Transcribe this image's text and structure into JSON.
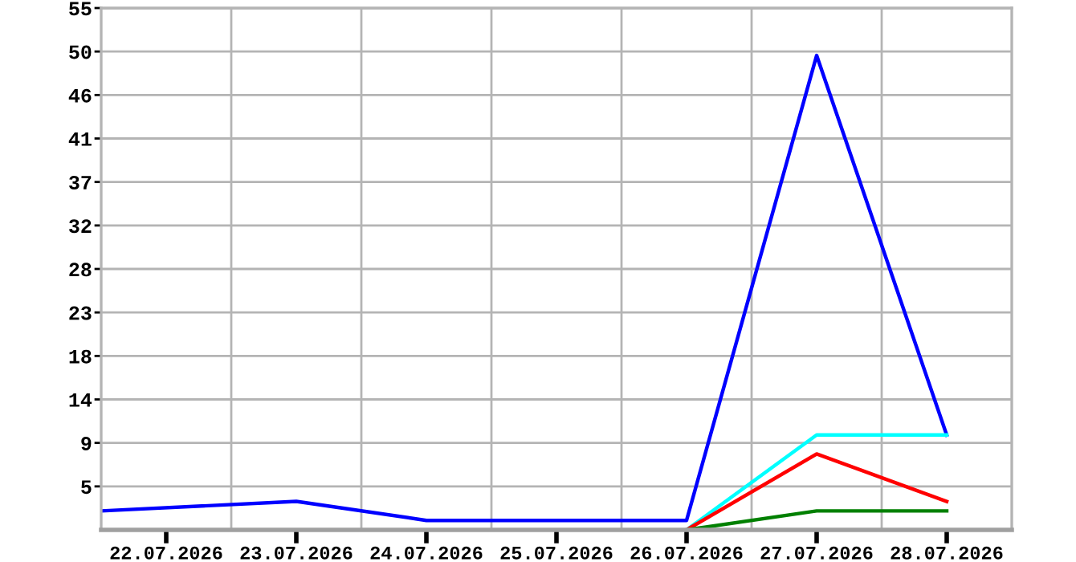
{
  "chart_data": {
    "type": "line",
    "xlim": [
      "2026-07-21T12:00",
      "2026-07-28T12:00"
    ],
    "xticks": [
      {
        "value": "2026-07-22",
        "label": "22.07.2026"
      },
      {
        "value": "2026-07-23",
        "label": "23.07.2026"
      },
      {
        "value": "2026-07-24",
        "label": "24.07.2026"
      },
      {
        "value": "2026-07-25",
        "label": "25.07.2026"
      },
      {
        "value": "2026-07-26",
        "label": "26.07.2026"
      },
      {
        "value": "2026-07-27",
        "label": "27.07.2026"
      },
      {
        "value": "2026-07-28",
        "label": "28.07.2026"
      },
      {
        "value": "2026-07-22T12:00",
        "label": null
      },
      {
        "value": "2026-07-23T12:00",
        "label": null
      },
      {
        "value": "2026-07-24T12:00",
        "label": null
      },
      {
        "value": "2026-07-25T12:00",
        "label": null
      },
      {
        "value": "2026-07-26T12:00",
        "label": null
      },
      {
        "value": "2026-07-27T12:00",
        "label": null
      }
    ],
    "ylim": [
      0,
      55
    ],
    "yticks": [
      {
        "value": 4.583,
        "label": "5"
      },
      {
        "value": 9.167,
        "label": "9"
      },
      {
        "value": 13.75,
        "label": "14"
      },
      {
        "value": 18.333,
        "label": "18"
      },
      {
        "value": 22.917,
        "label": "23"
      },
      {
        "value": 27.5,
        "label": "28"
      },
      {
        "value": 32.083,
        "label": "32"
      },
      {
        "value": 36.667,
        "label": "37"
      },
      {
        "value": 41.25,
        "label": "41"
      },
      {
        "value": 45.833,
        "label": "46"
      },
      {
        "value": 50.417,
        "label": "50"
      },
      {
        "value": 55,
        "label": "55"
      }
    ],
    "grid": true,
    "series": [
      {
        "color": "#0000ff",
        "x": [
          "2026-07-21T12:00",
          "2026-07-23",
          "2026-07-24",
          "2026-07-26",
          "2026-07-27",
          "2026-07-28"
        ],
        "values": [
          2,
          3,
          1,
          1,
          50,
          10
        ]
      },
      {
        "color": "#00ffff",
        "x": [
          "2026-07-26",
          "2026-07-27",
          "2026-07-28"
        ],
        "values": [
          0,
          10,
          10
        ]
      },
      {
        "color": "#ff0000",
        "x": [
          "2026-07-26",
          "2026-07-27",
          "2026-07-28"
        ],
        "values": [
          0,
          8,
          3
        ]
      },
      {
        "color": "#008000",
        "x": [
          "2026-07-26",
          "2026-07-27",
          "2026-07-28"
        ],
        "values": [
          0,
          2,
          2
        ]
      }
    ]
  }
}
